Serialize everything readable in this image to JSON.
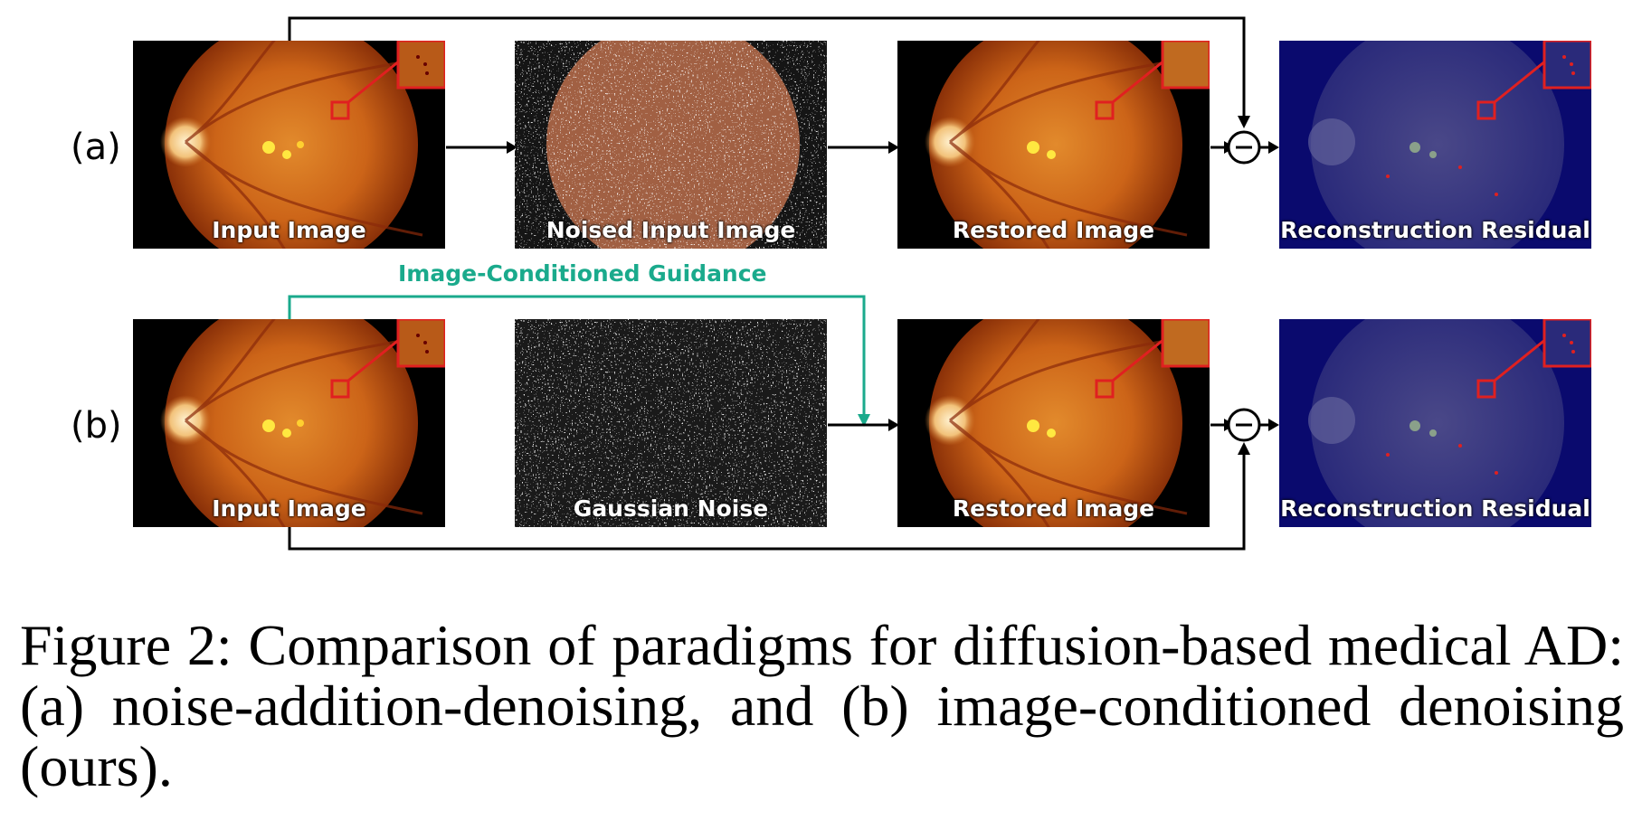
{
  "rows": [
    {
      "label": "(a)",
      "panels": [
        "Input Image",
        "Noised Input Image",
        "Restored Image",
        "Reconstruction Residual"
      ]
    },
    {
      "label": "(b)",
      "panels": [
        "Input Image",
        "Gaussian Noise",
        "Restored Image",
        "Reconstruction Residual"
      ]
    }
  ],
  "guidance_label": "Image-Conditioned Guidance",
  "subtract_symbol": "−",
  "caption": "Figure 2: Comparison of paradigms for diffusion-based medical AD: (a) noise-addition-denoising, and (b) image-conditioned denoising (ours).",
  "colors": {
    "guidance": "#1aaa8c",
    "highlight": "#e02020",
    "residual_bg": "#0a0a6e",
    "fundus": "#c8641c"
  }
}
